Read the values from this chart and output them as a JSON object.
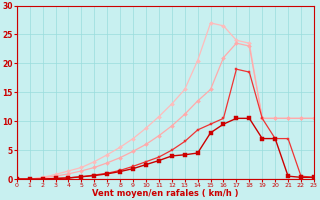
{
  "background_color": "#c8f0f0",
  "grid_color": "#99dddd",
  "xlim": [
    0,
    23
  ],
  "ylim": [
    0,
    30
  ],
  "yticks": [
    0,
    5,
    10,
    15,
    20,
    25,
    30
  ],
  "xticks": [
    0,
    1,
    2,
    3,
    4,
    5,
    6,
    7,
    8,
    9,
    10,
    11,
    12,
    13,
    14,
    15,
    16,
    17,
    18,
    19,
    20,
    21,
    22,
    23
  ],
  "xlabel": "Vent moyen/en rafales ( km/h )",
  "xlabel_color": "#cc0000",
  "axis_color": "#cc0000",
  "tick_color": "#cc0000",
  "line_light1": {
    "x": [
      0,
      1,
      2,
      3,
      4,
      5,
      6,
      7,
      8,
      9,
      10,
      11,
      12,
      13,
      14,
      15,
      16,
      17,
      18,
      19,
      20,
      21,
      22,
      23
    ],
    "y": [
      0,
      0,
      0.2,
      0.5,
      0.9,
      1.4,
      2.0,
      2.8,
      3.7,
      4.8,
      6.0,
      7.5,
      9.2,
      11.2,
      13.5,
      15.5,
      21.0,
      23.5,
      23.0,
      10.5,
      10.5,
      10.5,
      10.5,
      10.5
    ],
    "color": "#ffaaaa",
    "linewidth": 0.9,
    "marker": "D",
    "markersize": 2.0
  },
  "line_light2": {
    "x": [
      0,
      1,
      2,
      3,
      4,
      5,
      6,
      7,
      8,
      9,
      10,
      11,
      12,
      13,
      14,
      15,
      16,
      17,
      18,
      19,
      20,
      21,
      22,
      23
    ],
    "y": [
      0,
      0,
      0.3,
      0.8,
      1.4,
      2.0,
      3.0,
      4.2,
      5.5,
      7.0,
      8.8,
      10.8,
      13.0,
      15.5,
      20.5,
      27.0,
      26.5,
      24.0,
      23.5,
      10.5,
      10.5,
      10.5,
      10.5,
      10.5
    ],
    "color": "#ffbbbb",
    "linewidth": 0.9,
    "marker": "D",
    "markersize": 2.0
  },
  "line_dark1": {
    "x": [
      0,
      1,
      2,
      3,
      4,
      5,
      6,
      7,
      8,
      9,
      10,
      11,
      12,
      13,
      14,
      15,
      16,
      17,
      18,
      19,
      20,
      21,
      22,
      23
    ],
    "y": [
      0,
      0,
      0.0,
      0.1,
      0.2,
      0.4,
      0.6,
      0.9,
      1.3,
      1.8,
      2.5,
      3.2,
      4.0,
      4.2,
      4.5,
      8.0,
      9.5,
      10.5,
      10.5,
      7.0,
      7.0,
      0.5,
      0.3,
      0.3
    ],
    "color": "#cc0000",
    "linewidth": 1.0,
    "marker": "s",
    "markersize": 2.2
  },
  "line_dark2": {
    "x": [
      0,
      1,
      2,
      3,
      4,
      5,
      6,
      7,
      8,
      9,
      10,
      11,
      12,
      13,
      14,
      15,
      16,
      17,
      18,
      19,
      20,
      21,
      22,
      23
    ],
    "y": [
      0,
      0,
      0.0,
      0.1,
      0.2,
      0.4,
      0.7,
      1.0,
      1.5,
      2.2,
      3.0,
      3.8,
      5.0,
      6.5,
      8.5,
      9.5,
      10.5,
      19.0,
      18.5,
      10.5,
      7.0,
      7.0,
      0.5,
      0.3
    ],
    "color": "#ee3333",
    "linewidth": 0.9,
    "marker": "s",
    "markersize": 2.0
  }
}
